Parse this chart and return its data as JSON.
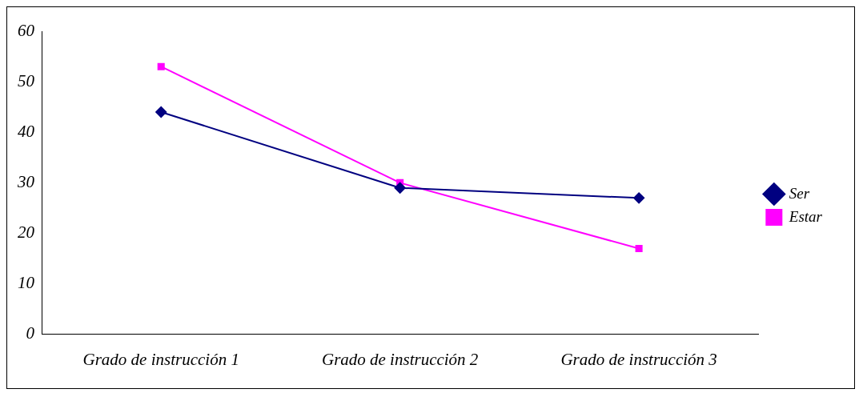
{
  "chart_data": {
    "type": "line",
    "categories": [
      "Grado de instrucción 1",
      "Grado de instrucción 2",
      "Grado de instrucción 3"
    ],
    "series": [
      {
        "name": "Ser",
        "color": "#000080",
        "values": [
          44,
          29,
          27
        ],
        "marker": "diamond"
      },
      {
        "name": "Estar",
        "color": "#ff00ff",
        "values": [
          53,
          30,
          17
        ],
        "marker": "square"
      }
    ],
    "ylim": [
      0,
      60
    ],
    "yticks": [
      0,
      10,
      20,
      30,
      40,
      50,
      60
    ],
    "grid": false,
    "legend": "right"
  }
}
